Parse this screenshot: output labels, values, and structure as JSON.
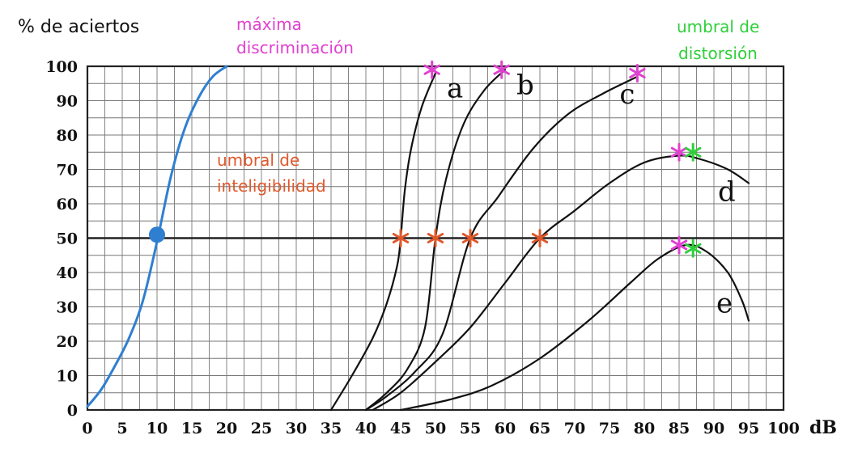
{
  "chart_data": {
    "type": "line",
    "ylabel": "% de aciertos",
    "xunit": "dB",
    "xlim": [
      0,
      100
    ],
    "ylim": [
      0,
      100
    ],
    "xticks": [
      0,
      5,
      10,
      15,
      20,
      25,
      30,
      35,
      40,
      45,
      50,
      55,
      60,
      65,
      70,
      75,
      80,
      85,
      90,
      95,
      100
    ],
    "yticks": [
      0,
      10,
      20,
      30,
      40,
      50,
      60,
      70,
      80,
      90,
      100
    ],
    "grid": true,
    "reference_line_y": 50,
    "series": [
      {
        "color": "#2f7fd0",
        "points": [
          [
            0,
            1
          ],
          [
            2,
            6
          ],
          [
            4,
            13
          ],
          [
            6,
            21
          ],
          [
            8,
            32
          ],
          [
            10,
            49
          ],
          [
            12,
            68
          ],
          [
            14,
            82
          ],
          [
            16,
            91
          ],
          [
            18,
            97
          ],
          [
            20,
            100
          ]
        ]
      },
      {
        "name": "a",
        "color": "#111111",
        "points": [
          [
            35,
            0
          ],
          [
            38,
            10
          ],
          [
            41,
            21
          ],
          [
            43,
            31
          ],
          [
            44.5,
            42
          ],
          [
            45,
            50
          ],
          [
            45.6,
            64
          ],
          [
            46.5,
            76
          ],
          [
            48,
            88
          ],
          [
            50,
            98
          ]
        ]
      },
      {
        "name": "b",
        "color": "#111111",
        "points": [
          [
            40,
            0
          ],
          [
            43,
            5
          ],
          [
            46,
            12
          ],
          [
            48.5,
            24
          ],
          [
            50,
            50
          ],
          [
            51.5,
            67
          ],
          [
            54,
            83
          ],
          [
            57,
            93
          ],
          [
            60,
            99
          ]
        ]
      },
      {
        "name": "c",
        "color": "#111111",
        "points": [
          [
            40,
            0
          ],
          [
            43,
            4
          ],
          [
            47,
            11
          ],
          [
            51,
            22
          ],
          [
            55,
            50
          ],
          [
            59,
            62
          ],
          [
            64,
            76
          ],
          [
            69,
            86
          ],
          [
            74,
            92
          ],
          [
            79,
            97
          ]
        ]
      },
      {
        "name": "d",
        "color": "#111111",
        "points": [
          [
            41,
            0
          ],
          [
            45,
            5
          ],
          [
            50,
            14
          ],
          [
            55,
            24
          ],
          [
            60,
            37
          ],
          [
            65,
            50
          ],
          [
            70,
            58
          ],
          [
            75,
            66
          ],
          [
            80,
            72
          ],
          [
            85,
            74
          ],
          [
            88,
            73
          ],
          [
            92,
            70
          ],
          [
            95,
            66
          ]
        ]
      },
      {
        "name": "e",
        "color": "#111111",
        "points": [
          [
            45,
            0
          ],
          [
            52,
            3
          ],
          [
            58,
            7
          ],
          [
            65,
            15
          ],
          [
            72,
            26
          ],
          [
            78,
            37
          ],
          [
            82,
            44
          ],
          [
            86,
            48
          ],
          [
            89,
            46
          ],
          [
            92,
            40
          ],
          [
            94,
            32
          ],
          [
            95,
            26
          ]
        ]
      }
    ],
    "markers": [
      {
        "kind": "dot",
        "color": "#2f7fd0",
        "x": 10,
        "y": 51
      },
      {
        "kind": "star",
        "color": "#e0582a",
        "x": 45,
        "y": 50
      },
      {
        "kind": "star",
        "color": "#e0582a",
        "x": 50,
        "y": 50
      },
      {
        "kind": "star",
        "color": "#e0582a",
        "x": 55,
        "y": 50
      },
      {
        "kind": "star",
        "color": "#e0582a",
        "x": 65,
        "y": 50
      },
      {
        "kind": "star",
        "color": "#e040d0",
        "x": 49.5,
        "y": 99
      },
      {
        "kind": "star",
        "color": "#e040d0",
        "x": 59.5,
        "y": 99
      },
      {
        "kind": "star",
        "color": "#e040d0",
        "x": 79,
        "y": 98
      },
      {
        "kind": "star",
        "color": "#e040d0",
        "x": 85,
        "y": 75
      },
      {
        "kind": "star",
        "color": "#e040d0",
        "x": 85,
        "y": 48
      },
      {
        "kind": "star",
        "color": "#2fcf3a",
        "x": 87,
        "y": 75
      },
      {
        "kind": "star",
        "color": "#2fcf3a",
        "x": 87,
        "y": 47
      }
    ],
    "annotations": [
      {
        "id": "maxima",
        "lines": [
          "máxima",
          "discriminación"
        ],
        "color": "#e040d0"
      },
      {
        "id": "distorsion",
        "lines": [
          "umbral de",
          "distorsión"
        ],
        "color": "#2fcf3a"
      },
      {
        "id": "inteligibilidad",
        "lines": [
          "umbral de",
          "inteligibilidad"
        ],
        "color": "#e0582a"
      }
    ]
  }
}
